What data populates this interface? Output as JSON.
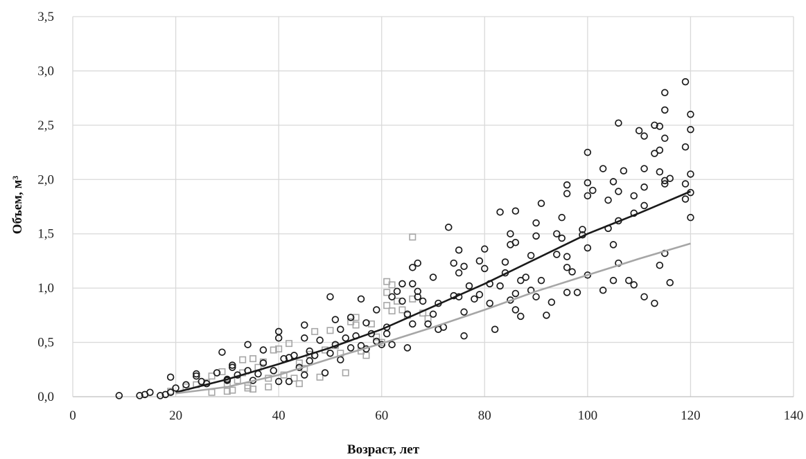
{
  "chart_data": {
    "type": "scatter",
    "title": "",
    "xlabel": "Возраст, лет",
    "ylabel": "Объем, м³",
    "xlim": [
      0,
      140
    ],
    "ylim": [
      0,
      3.5
    ],
    "x_ticks": [
      0,
      20,
      40,
      60,
      80,
      100,
      120,
      140
    ],
    "y_ticks": [
      0,
      0.5,
      1.0,
      1.5,
      2.0,
      2.5,
      3.0,
      3.5
    ],
    "x_tick_labels": [
      "0",
      "20",
      "40",
      "60",
      "80",
      "100",
      "120",
      "140"
    ],
    "y_tick_labels": [
      "0,0",
      "0,5",
      "1,0",
      "1,5",
      "2,0",
      "2,5",
      "3,0",
      "3,5"
    ],
    "grid": true,
    "legend": "none",
    "series": [
      {
        "marker": "circle",
        "color": "#1a1a1a",
        "points": [
          [
            9,
            0.01
          ],
          [
            13,
            0.01
          ],
          [
            14,
            0.02
          ],
          [
            15,
            0.04
          ],
          [
            17,
            0.01
          ],
          [
            18,
            0.02
          ],
          [
            19,
            0.04
          ],
          [
            19,
            0.18
          ],
          [
            20,
            0.08
          ],
          [
            22,
            0.11
          ],
          [
            24,
            0.19
          ],
          [
            24,
            0.21
          ],
          [
            25,
            0.14
          ],
          [
            26,
            0.12
          ],
          [
            28,
            0.22
          ],
          [
            29,
            0.41
          ],
          [
            30,
            0.16
          ],
          [
            30,
            0.15
          ],
          [
            31,
            0.29
          ],
          [
            31,
            0.27
          ],
          [
            32,
            0.2
          ],
          [
            34,
            0.48
          ],
          [
            34,
            0.24
          ],
          [
            35,
            0.15
          ],
          [
            36,
            0.21
          ],
          [
            37,
            0.31
          ],
          [
            37,
            0.43
          ],
          [
            39,
            0.24
          ],
          [
            40,
            0.6
          ],
          [
            40,
            0.54
          ],
          [
            40,
            0.14
          ],
          [
            41,
            0.35
          ],
          [
            42,
            0.36
          ],
          [
            42,
            0.14
          ],
          [
            43,
            0.38
          ],
          [
            44,
            0.27
          ],
          [
            45,
            0.66
          ],
          [
            45,
            0.54
          ],
          [
            45,
            0.2
          ],
          [
            46,
            0.42
          ],
          [
            46,
            0.33
          ],
          [
            47,
            0.38
          ],
          [
            48,
            0.52
          ],
          [
            49,
            0.22
          ],
          [
            50,
            0.92
          ],
          [
            50,
            0.4
          ],
          [
            51,
            0.71
          ],
          [
            51,
            0.48
          ],
          [
            52,
            0.62
          ],
          [
            52,
            0.34
          ],
          [
            53,
            0.54
          ],
          [
            54,
            0.73
          ],
          [
            54,
            0.45
          ],
          [
            55,
            0.56
          ],
          [
            56,
            0.9
          ],
          [
            56,
            0.47
          ],
          [
            57,
            0.68
          ],
          [
            57,
            0.44
          ],
          [
            58,
            0.58
          ],
          [
            59,
            0.8
          ],
          [
            59,
            0.51
          ],
          [
            60,
            0.48
          ],
          [
            61,
            0.64
          ],
          [
            61,
            0.58
          ],
          [
            62,
            0.92
          ],
          [
            62,
            0.48
          ],
          [
            63,
            0.97
          ],
          [
            64,
            1.04
          ],
          [
            64,
            0.88
          ],
          [
            65,
            0.76
          ],
          [
            65,
            0.45
          ],
          [
            66,
            1.19
          ],
          [
            66,
            1.04
          ],
          [
            66,
            0.67
          ],
          [
            67,
            1.23
          ],
          [
            67,
            0.97
          ],
          [
            67,
            0.92
          ],
          [
            68,
            0.88
          ],
          [
            69,
            0.67
          ],
          [
            70,
            1.1
          ],
          [
            70,
            0.76
          ],
          [
            71,
            0.62
          ],
          [
            71,
            0.86
          ],
          [
            72,
            0.64
          ],
          [
            73,
            1.56
          ],
          [
            74,
            1.23
          ],
          [
            74,
            0.93
          ],
          [
            75,
            1.35
          ],
          [
            75,
            1.14
          ],
          [
            75,
            0.92
          ],
          [
            76,
            1.2
          ],
          [
            76,
            0.78
          ],
          [
            76,
            0.56
          ],
          [
            77,
            1.02
          ],
          [
            78,
            0.9
          ],
          [
            79,
            1.25
          ],
          [
            79,
            0.94
          ],
          [
            80,
            1.36
          ],
          [
            80,
            1.18
          ],
          [
            81,
            1.04
          ],
          [
            81,
            0.86
          ],
          [
            82,
            0.62
          ],
          [
            83,
            1.7
          ],
          [
            83,
            1.02
          ],
          [
            84,
            1.24
          ],
          [
            84,
            1.14
          ],
          [
            85,
            1.5
          ],
          [
            85,
            1.4
          ],
          [
            85,
            0.89
          ],
          [
            86,
            1.71
          ],
          [
            86,
            1.42
          ],
          [
            86,
            0.95
          ],
          [
            86,
            0.8
          ],
          [
            87,
            1.07
          ],
          [
            87,
            0.74
          ],
          [
            88,
            1.1
          ],
          [
            89,
            1.3
          ],
          [
            89,
            0.98
          ],
          [
            90,
            1.6
          ],
          [
            90,
            1.48
          ],
          [
            90,
            0.92
          ],
          [
            91,
            1.78
          ],
          [
            91,
            1.07
          ],
          [
            92,
            0.75
          ],
          [
            93,
            0.87
          ],
          [
            94,
            1.5
          ],
          [
            94,
            1.31
          ],
          [
            95,
            1.65
          ],
          [
            95,
            1.46
          ],
          [
            96,
            1.95
          ],
          [
            96,
            1.87
          ],
          [
            96,
            1.29
          ],
          [
            96,
            1.19
          ],
          [
            96,
            0.96
          ],
          [
            97,
            1.15
          ],
          [
            98,
            0.96
          ],
          [
            99,
            1.54
          ],
          [
            99,
            1.49
          ],
          [
            100,
            2.25
          ],
          [
            100,
            1.97
          ],
          [
            100,
            1.85
          ],
          [
            100,
            1.37
          ],
          [
            100,
            1.12
          ],
          [
            101,
            1.9
          ],
          [
            103,
            2.1
          ],
          [
            103,
            0.98
          ],
          [
            104,
            1.81
          ],
          [
            104,
            1.55
          ],
          [
            105,
            1.98
          ],
          [
            105,
            1.4
          ],
          [
            105,
            1.07
          ],
          [
            106,
            2.52
          ],
          [
            106,
            1.89
          ],
          [
            106,
            1.62
          ],
          [
            106,
            1.23
          ],
          [
            107,
            2.08
          ],
          [
            108,
            1.07
          ],
          [
            109,
            1.85
          ],
          [
            109,
            1.69
          ],
          [
            109,
            1.03
          ],
          [
            110,
            2.45
          ],
          [
            111,
            2.4
          ],
          [
            111,
            2.1
          ],
          [
            111,
            1.93
          ],
          [
            111,
            1.76
          ],
          [
            111,
            0.92
          ],
          [
            113,
            2.5
          ],
          [
            113,
            2.24
          ],
          [
            113,
            0.86
          ],
          [
            114,
            2.49
          ],
          [
            114,
            2.27
          ],
          [
            114,
            2.07
          ],
          [
            114,
            1.21
          ],
          [
            115,
            2.8
          ],
          [
            115,
            2.64
          ],
          [
            115,
            2.38
          ],
          [
            115,
            1.99
          ],
          [
            115,
            1.96
          ],
          [
            115,
            1.32
          ],
          [
            116,
            2.01
          ],
          [
            116,
            1.05
          ],
          [
            119,
            2.9
          ],
          [
            119,
            2.3
          ],
          [
            119,
            1.96
          ],
          [
            119,
            1.82
          ],
          [
            120,
            2.6
          ],
          [
            120,
            2.46
          ],
          [
            120,
            2.05
          ],
          [
            120,
            1.88
          ],
          [
            120,
            1.65
          ]
        ]
      },
      {
        "marker": "square",
        "color": "#a6a6a6",
        "points": [
          [
            19,
            0.05
          ],
          [
            22,
            0.09
          ],
          [
            24,
            0.11
          ],
          [
            26,
            0.13
          ],
          [
            27,
            0.04
          ],
          [
            27,
            0.19
          ],
          [
            29,
            0.23
          ],
          [
            30,
            0.05
          ],
          [
            30,
            0.12
          ],
          [
            31,
            0.06
          ],
          [
            32,
            0.15
          ],
          [
            33,
            0.22
          ],
          [
            33,
            0.34
          ],
          [
            34,
            0.1
          ],
          [
            34,
            0.08
          ],
          [
            35,
            0.07
          ],
          [
            35,
            0.35
          ],
          [
            36,
            0.27
          ],
          [
            37,
            0.32
          ],
          [
            38,
            0.09
          ],
          [
            38,
            0.17
          ],
          [
            39,
            0.43
          ],
          [
            40,
            0.44
          ],
          [
            41,
            0.2
          ],
          [
            42,
            0.49
          ],
          [
            43,
            0.17
          ],
          [
            44,
            0.12
          ],
          [
            44,
            0.31
          ],
          [
            45,
            0.26
          ],
          [
            46,
            0.39
          ],
          [
            47,
            0.6
          ],
          [
            48,
            0.18
          ],
          [
            49,
            0.43
          ],
          [
            50,
            0.61
          ],
          [
            51,
            0.47
          ],
          [
            52,
            0.4
          ],
          [
            53,
            0.22
          ],
          [
            54,
            0.69
          ],
          [
            55,
            0.73
          ],
          [
            55,
            0.66
          ],
          [
            56,
            0.42
          ],
          [
            57,
            0.38
          ],
          [
            58,
            0.67
          ],
          [
            59,
            0.55
          ],
          [
            60,
            0.5
          ],
          [
            61,
            1.06
          ],
          [
            61,
            0.84
          ],
          [
            61,
            0.96
          ],
          [
            62,
            1.03
          ],
          [
            62,
            0.79
          ],
          [
            63,
            0.88
          ],
          [
            64,
            0.8
          ],
          [
            65,
            0.75
          ],
          [
            66,
            1.47
          ],
          [
            66,
            0.9
          ],
          [
            68,
            0.77
          ],
          [
            69,
            0.72
          ]
        ]
      }
    ],
    "trendlines": [
      {
        "color": "#1a1a1a",
        "points": [
          [
            20,
            0.04
          ],
          [
            30,
            0.16
          ],
          [
            40,
            0.3
          ],
          [
            50,
            0.45
          ],
          [
            60,
            0.62
          ],
          [
            70,
            0.83
          ],
          [
            80,
            1.04
          ],
          [
            90,
            1.27
          ],
          [
            100,
            1.5
          ],
          [
            110,
            1.69
          ],
          [
            120,
            1.89
          ]
        ]
      },
      {
        "color": "#a6a6a6",
        "points": [
          [
            20,
            0.03
          ],
          [
            30,
            0.09
          ],
          [
            40,
            0.2
          ],
          [
            50,
            0.35
          ],
          [
            60,
            0.49
          ],
          [
            70,
            0.64
          ],
          [
            80,
            0.8
          ],
          [
            90,
            0.97
          ],
          [
            100,
            1.12
          ],
          [
            110,
            1.27
          ],
          [
            120,
            1.41
          ]
        ]
      }
    ]
  }
}
